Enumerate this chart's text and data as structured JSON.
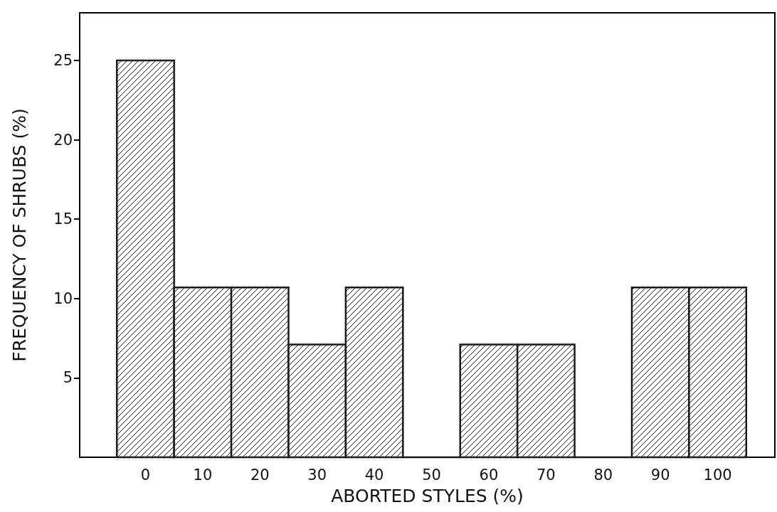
{
  "chart_data": {
    "type": "histogram",
    "xlabel": "ABORTED STYLES (%)",
    "ylabel": "FREQUENCY OF SHRUBS (%)",
    "bins": [
      -5,
      5,
      15,
      25,
      35,
      45,
      55,
      65,
      75,
      85,
      95,
      105
    ],
    "values": [
      25,
      10.7,
      10.7,
      7.1,
      10.7,
      0,
      7.1,
      7.1,
      0,
      10.7,
      10.7
    ],
    "color": "#1a1a1a",
    "xlim": [
      -11.5,
      110
    ],
    "xticks": [
      0,
      10,
      20,
      30,
      40,
      50,
      60,
      70,
      80,
      90,
      100
    ],
    "ylim": [
      0,
      28
    ],
    "yticks": [
      5,
      10,
      15,
      20,
      25
    ],
    "grid": false
  }
}
